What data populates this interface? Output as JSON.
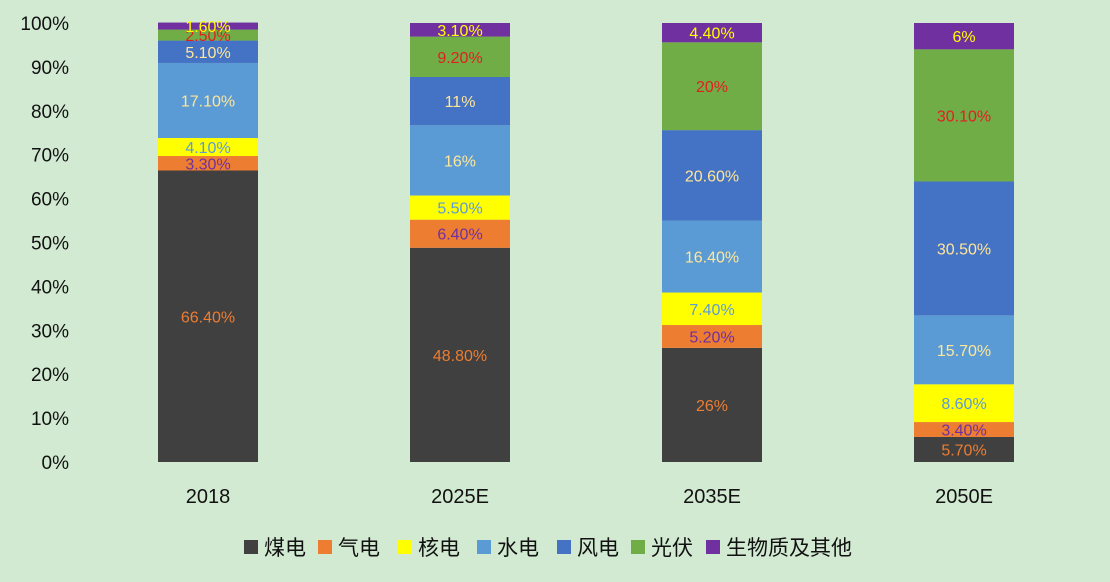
{
  "chart_data": {
    "type": "bar",
    "stacked": true,
    "categories": [
      "2018",
      "2025E",
      "2035E",
      "2050E"
    ],
    "series": [
      {
        "name": "煤电",
        "color": "#404040",
        "label_color": "#ed7d31",
        "values": [
          66.4,
          48.8,
          26,
          5.7
        ],
        "labels": [
          "66.40%",
          "48.80%",
          "26%",
          "5.70%"
        ]
      },
      {
        "name": "气电",
        "color": "#ed7d31",
        "label_color": "#7030a0",
        "values": [
          3.3,
          6.4,
          5.2,
          3.4
        ],
        "labels": [
          "3.30%",
          "6.40%",
          "5.20%",
          "3.40%"
        ]
      },
      {
        "name": "核电",
        "color": "#ffff00",
        "label_color": "#5b9bd5",
        "values": [
          4.1,
          5.5,
          7.4,
          8.6
        ],
        "labels": [
          "4.10%",
          "5.50%",
          "7.40%",
          "8.60%"
        ]
      },
      {
        "name": "水电",
        "color": "#5b9bd5",
        "label_color": "#ffe699",
        "values": [
          17.1,
          16,
          16.4,
          15.7
        ],
        "labels": [
          "17.10%",
          "16%",
          "16.40%",
          "15.70%"
        ]
      },
      {
        "name": "风电",
        "color": "#4472c4",
        "label_color": "#ffe699",
        "values": [
          5.1,
          11,
          20.6,
          30.5
        ],
        "labels": [
          "5.10%",
          "11%",
          "20.60%",
          "30.50%"
        ]
      },
      {
        "name": "光伏",
        "color": "#70ad47",
        "label_color": "#e02020",
        "values": [
          2.5,
          9.2,
          20,
          30.1
        ],
        "labels": [
          "2.50%",
          "9.20%",
          "20%",
          "30.10%"
        ]
      },
      {
        "name": "生物质及其他",
        "color": "#7030a0",
        "label_color": "#ffff00",
        "values": [
          1.6,
          3.1,
          4.4,
          6
        ],
        "labels": [
          "1.60%",
          "3.10%",
          "4.40%",
          "6%"
        ]
      }
    ],
    "ylim": [
      0,
      100
    ],
    "yticks": [
      "0%",
      "10%",
      "20%",
      "30%",
      "40%",
      "50%",
      "60%",
      "70%",
      "80%",
      "90%",
      "100%"
    ],
    "legend_position": "bottom",
    "grid": false
  }
}
